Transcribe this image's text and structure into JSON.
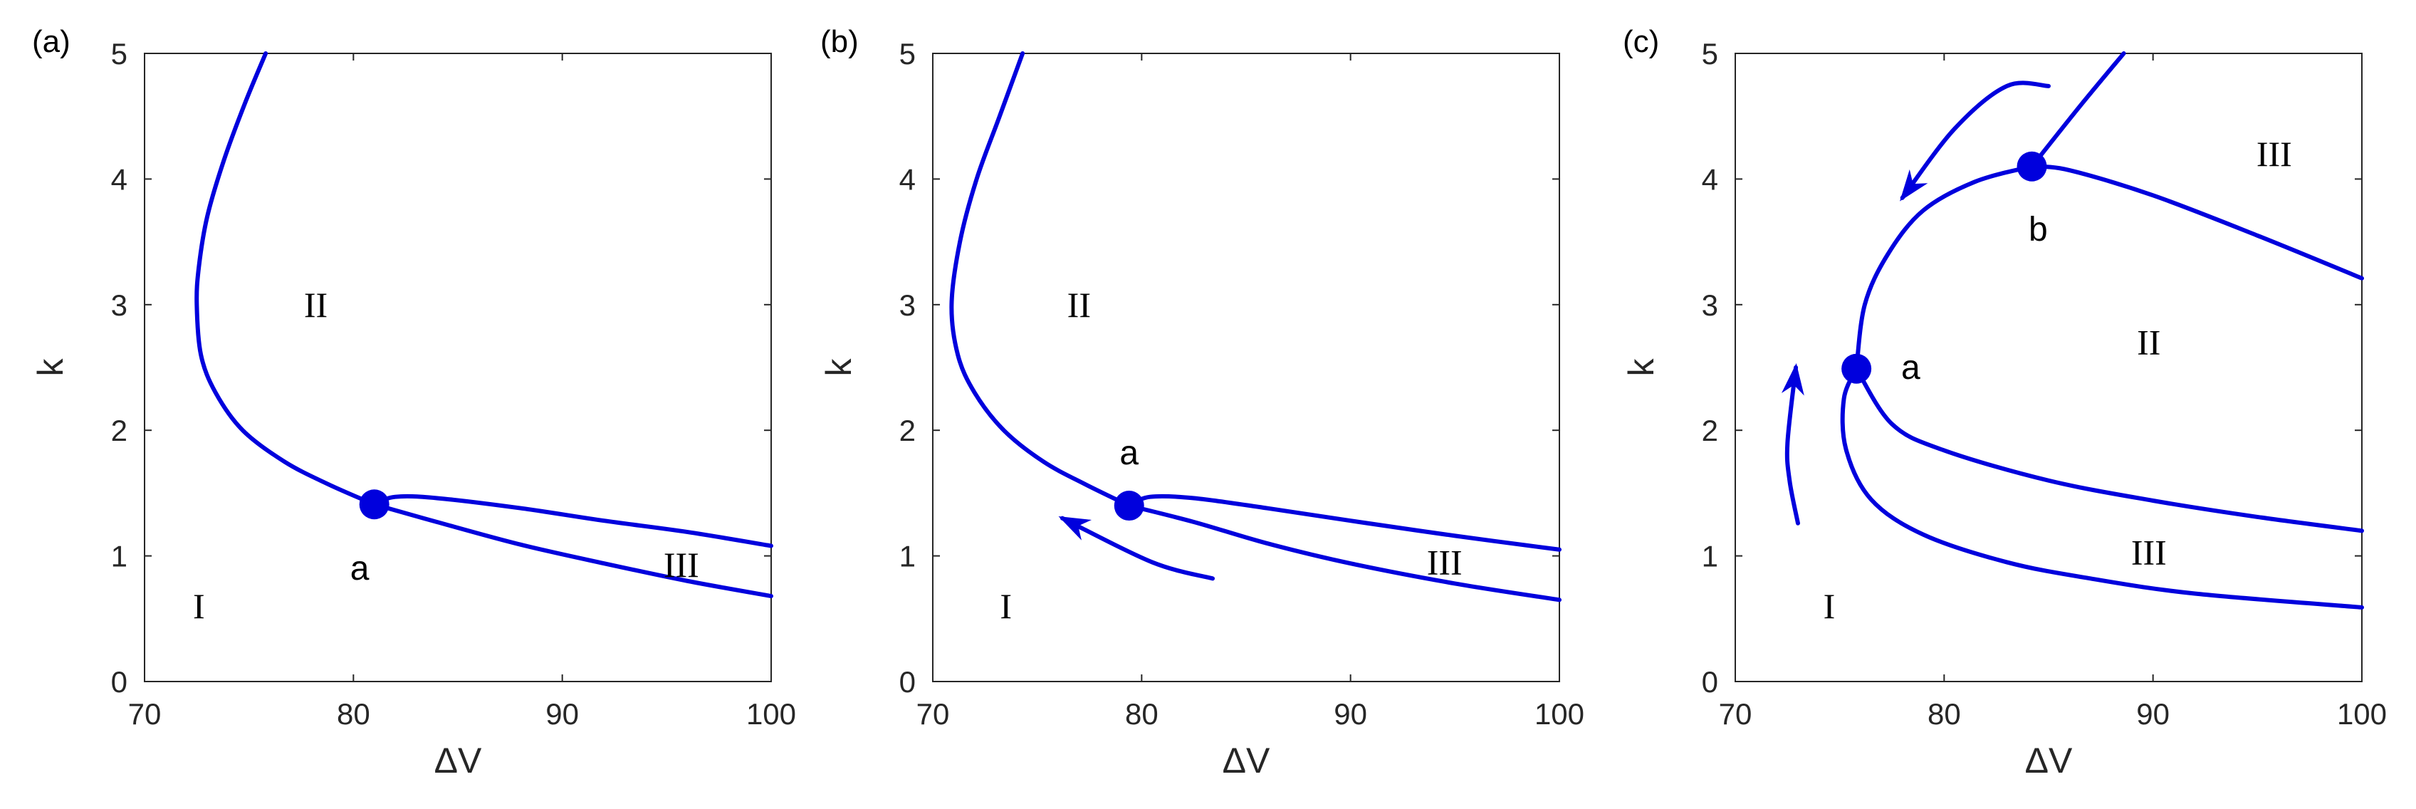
{
  "chart_data": [
    {
      "type": "line",
      "panel_label": "(a)",
      "xlabel": "ΔV",
      "ylabel": "k",
      "xlim": [
        70,
        100
      ],
      "ylim": [
        0,
        5
      ],
      "xticks": [
        70,
        80,
        90,
        100
      ],
      "yticks": [
        0,
        1,
        2,
        3,
        4,
        5
      ],
      "color": "#0000dd",
      "series": [
        {
          "points": [
            [
              75.8,
              5.0
            ],
            [
              74.8,
              4.6
            ],
            [
              73.8,
              4.15
            ],
            [
              73.0,
              3.7
            ],
            [
              72.6,
              3.3
            ],
            [
              72.5,
              3.0
            ],
            [
              72.7,
              2.6
            ],
            [
              73.4,
              2.3
            ],
            [
              74.7,
              2.0
            ],
            [
              76.7,
              1.75
            ],
            [
              78.8,
              1.57
            ],
            [
              81.0,
              1.41
            ]
          ]
        },
        {
          "points": [
            [
              81.0,
              1.41
            ],
            [
              82.0,
              1.47
            ],
            [
              84.0,
              1.46
            ],
            [
              88.0,
              1.38
            ],
            [
              92.0,
              1.28
            ],
            [
              96.0,
              1.19
            ],
            [
              100.0,
              1.08
            ]
          ]
        },
        {
          "points": [
            [
              81.0,
              1.41
            ],
            [
              84.0,
              1.27
            ],
            [
              88.0,
              1.09
            ],
            [
              92.0,
              0.94
            ],
            [
              96.0,
              0.8
            ],
            [
              100.0,
              0.68
            ]
          ]
        }
      ],
      "markers": [
        {
          "name": "a",
          "x": 81.0,
          "y": 1.41
        }
      ],
      "point_labels": [
        {
          "text": "a",
          "x": 80.3,
          "y": 0.9
        }
      ],
      "region_labels": [
        {
          "text": "I",
          "x": 72.6,
          "y": 0.6
        },
        {
          "text": "II",
          "x": 78.2,
          "y": 3.0
        },
        {
          "text": "III",
          "x": 95.7,
          "y": 0.93
        }
      ],
      "arrows": []
    },
    {
      "type": "line",
      "panel_label": "(b)",
      "xlabel": "ΔV",
      "ylabel": "k",
      "xlim": [
        70,
        100
      ],
      "ylim": [
        0,
        5
      ],
      "xticks": [
        70,
        80,
        90,
        100
      ],
      "yticks": [
        0,
        1,
        2,
        3,
        4,
        5
      ],
      "color": "#0000dd",
      "series": [
        {
          "points": [
            [
              74.3,
              5.0
            ],
            [
              73.2,
              4.5
            ],
            [
              72.1,
              4.0
            ],
            [
              71.3,
              3.5
            ],
            [
              70.9,
              3.0
            ],
            [
              71.2,
              2.6
            ],
            [
              72.0,
              2.3
            ],
            [
              73.4,
              2.0
            ],
            [
              75.3,
              1.75
            ],
            [
              77.3,
              1.57
            ],
            [
              79.4,
              1.4
            ]
          ]
        },
        {
          "points": [
            [
              79.4,
              1.4
            ],
            [
              80.4,
              1.47
            ],
            [
              82.5,
              1.46
            ],
            [
              86.0,
              1.38
            ],
            [
              90.0,
              1.28
            ],
            [
              95.0,
              1.16
            ],
            [
              100.0,
              1.05
            ]
          ]
        },
        {
          "points": [
            [
              79.4,
              1.4
            ],
            [
              82.5,
              1.27
            ],
            [
              86.0,
              1.1
            ],
            [
              90.0,
              0.94
            ],
            [
              95.0,
              0.78
            ],
            [
              100.0,
              0.65
            ]
          ]
        }
      ],
      "markers": [
        {
          "name": "a",
          "x": 79.4,
          "y": 1.4
        }
      ],
      "point_labels": [
        {
          "text": "a",
          "x": 79.4,
          "y": 1.82
        }
      ],
      "region_labels": [
        {
          "text": "I",
          "x": 73.5,
          "y": 0.6
        },
        {
          "text": "II",
          "x": 77.0,
          "y": 3.0
        },
        {
          "text": "III",
          "x": 94.5,
          "y": 0.95
        }
      ],
      "arrows": [
        {
          "points": [
            [
              83.4,
              0.82
            ],
            [
              80.5,
              0.95
            ],
            [
              76.2,
              1.3
            ]
          ]
        }
      ]
    },
    {
      "type": "line",
      "panel_label": "(c)",
      "xlabel": "ΔV",
      "ylabel": "k",
      "xlim": [
        70,
        100
      ],
      "ylim": [
        0,
        5
      ],
      "xticks": [
        70,
        80,
        90,
        100
      ],
      "yticks": [
        0,
        1,
        2,
        3,
        4,
        5
      ],
      "color": "#0000dd",
      "series": [
        {
          "points": [
            [
              88.6,
              5.0
            ],
            [
              86.5,
              4.58
            ],
            [
              84.2,
              4.1
            ]
          ]
        },
        {
          "points": [
            [
              75.8,
              2.49
            ],
            [
              76.2,
              3.0
            ],
            [
              77.3,
              3.4
            ],
            [
              79.0,
              3.75
            ],
            [
              81.5,
              3.98
            ],
            [
              84.2,
              4.1
            ]
          ]
        },
        {
          "points": [
            [
              84.2,
              4.1
            ],
            [
              86.0,
              4.07
            ],
            [
              90.0,
              3.87
            ],
            [
              95.0,
              3.55
            ],
            [
              100.0,
              3.21
            ]
          ]
        },
        {
          "points": [
            [
              75.8,
              2.49
            ],
            [
              77.5,
              2.05
            ],
            [
              80.0,
              1.84
            ],
            [
              85.0,
              1.6
            ],
            [
              90.0,
              1.44
            ],
            [
              95.0,
              1.31
            ],
            [
              100.0,
              1.2
            ]
          ]
        },
        {
          "points": [
            [
              75.8,
              2.49
            ],
            [
              75.2,
              2.25
            ],
            [
              75.3,
              1.85
            ],
            [
              76.5,
              1.45
            ],
            [
              79.0,
              1.17
            ],
            [
              83.0,
              0.95
            ],
            [
              87.0,
              0.82
            ],
            [
              92.0,
              0.7
            ],
            [
              100.0,
              0.59
            ]
          ]
        }
      ],
      "markers": [
        {
          "name": "a",
          "x": 75.8,
          "y": 2.49
        },
        {
          "name": "b",
          "x": 84.2,
          "y": 4.1
        }
      ],
      "point_labels": [
        {
          "text": "a",
          "x": 78.4,
          "y": 2.5
        },
        {
          "text": "b",
          "x": 84.5,
          "y": 3.6
        }
      ],
      "region_labels": [
        {
          "text": "I",
          "x": 74.5,
          "y": 0.6
        },
        {
          "text": "II",
          "x": 89.8,
          "y": 2.7
        },
        {
          "text": "III",
          "x": 95.8,
          "y": 4.2
        },
        {
          "text": "III",
          "x": 89.8,
          "y": 1.03
        }
      ],
      "arrows": [
        {
          "points": [
            [
              85.0,
              4.74
            ],
            [
              83.0,
              4.74
            ],
            [
              80.5,
              4.4
            ],
            [
              78.0,
              3.85
            ]
          ]
        },
        {
          "points": [
            [
              73.0,
              1.26
            ],
            [
              72.6,
              1.6
            ],
            [
              72.5,
              1.9
            ],
            [
              72.9,
              2.5
            ]
          ]
        }
      ]
    }
  ]
}
